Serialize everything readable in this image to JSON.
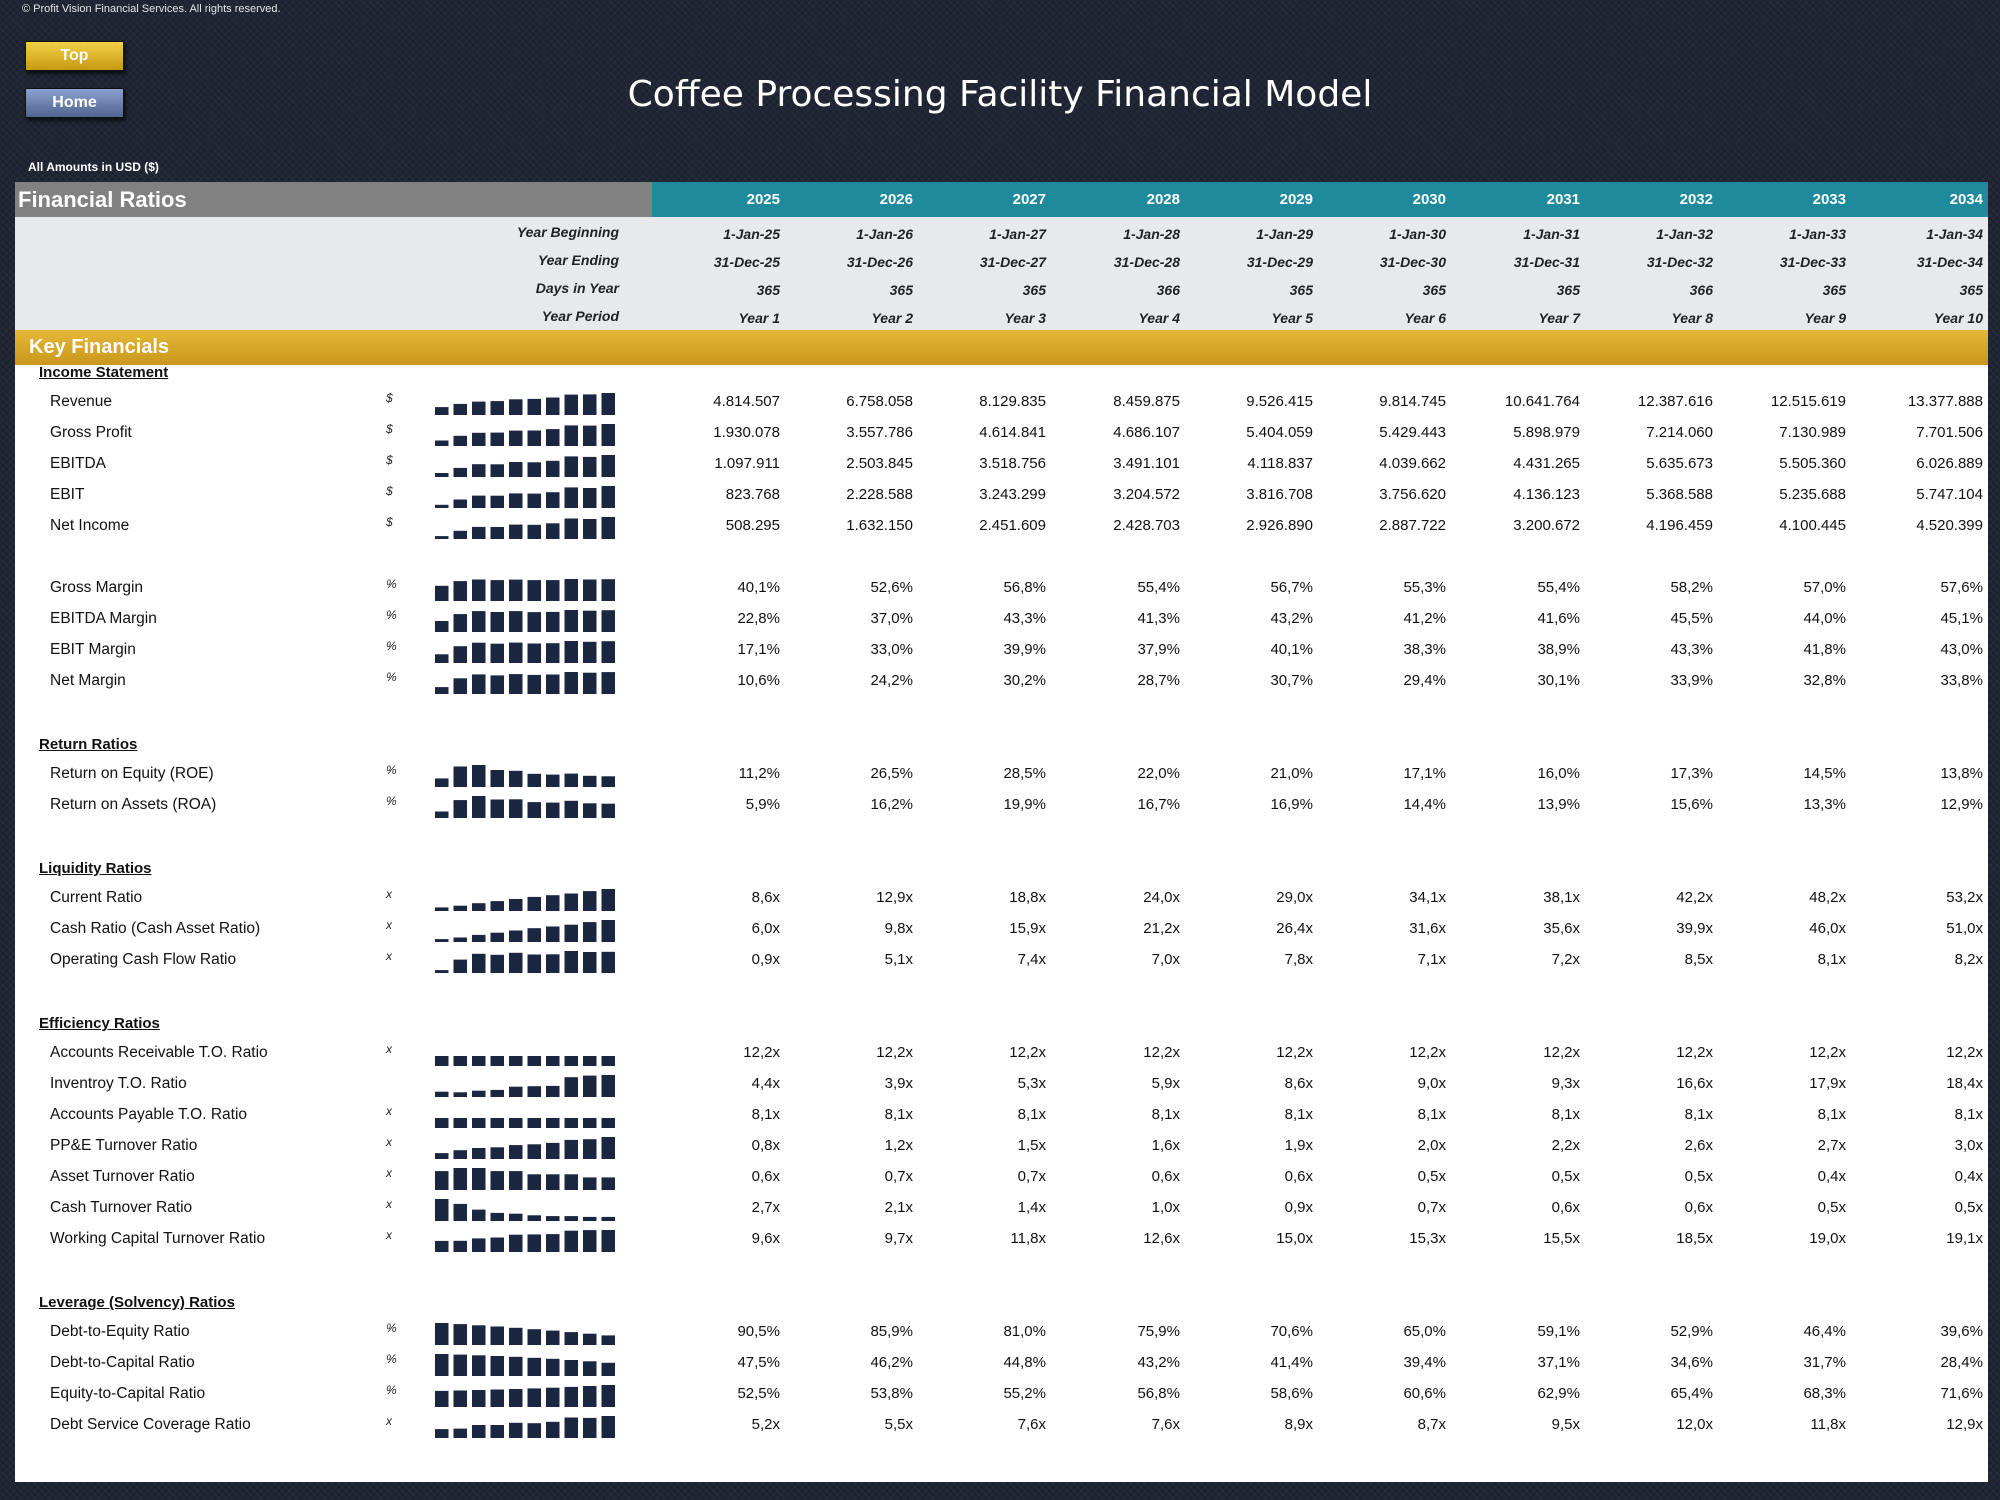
{
  "copyright": "© Profit Vision Financial Services. All rights reserved.",
  "nav": {
    "top": "Top",
    "home": "Home"
  },
  "title": "Coffee Processing Facility Financial Model",
  "amounts_note": "All Amounts in  USD ($)",
  "header": {
    "section": "Financial Ratios",
    "years": [
      "2025",
      "2026",
      "2027",
      "2028",
      "2029",
      "2030",
      "2031",
      "2032",
      "2033",
      "2034"
    ]
  },
  "info": {
    "labels": [
      "Year Beginning",
      "Year Ending",
      "Days in Year",
      "Year Period"
    ],
    "year_beginning": [
      "1-Jan-25",
      "1-Jan-26",
      "1-Jan-27",
      "1-Jan-28",
      "1-Jan-29",
      "1-Jan-30",
      "1-Jan-31",
      "1-Jan-32",
      "1-Jan-33",
      "1-Jan-34"
    ],
    "year_ending": [
      "31-Dec-25",
      "31-Dec-26",
      "31-Dec-27",
      "31-Dec-28",
      "31-Dec-29",
      "31-Dec-30",
      "31-Dec-31",
      "31-Dec-32",
      "31-Dec-33",
      "31-Dec-34"
    ],
    "days": [
      "365",
      "365",
      "365",
      "366",
      "365",
      "365",
      "365",
      "366",
      "365",
      "365"
    ],
    "period": [
      "Year 1",
      "Year 2",
      "Year 3",
      "Year 4",
      "Year 5",
      "Year 6",
      "Year 7",
      "Year 8",
      "Year 9",
      "Year 10"
    ]
  },
  "key_financials": "Key Financials",
  "colors": {
    "teal": "#1f8a9b",
    "gold": "#d9a92a",
    "gray": "#818181",
    "spark": "#1b2740"
  },
  "sections": [
    {
      "title": "Income Statement",
      "rows": [
        {
          "label": "Revenue",
          "unit": "$",
          "values": [
            "4.814.507",
            "6.758.058",
            "8.129.835",
            "8.459.875",
            "9.526.415",
            "9.814.745",
            "10.641.764",
            "12.387.616",
            "12.515.619",
            "13.377.888"
          ]
        },
        {
          "label": "Gross Profit",
          "unit": "$",
          "values": [
            "1.930.078",
            "3.557.786",
            "4.614.841",
            "4.686.107",
            "5.404.059",
            "5.429.443",
            "5.898.979",
            "7.214.060",
            "7.130.989",
            "7.701.506"
          ]
        },
        {
          "label": "EBITDA",
          "unit": "$",
          "values": [
            "1.097.911",
            "2.503.845",
            "3.518.756",
            "3.491.101",
            "4.118.837",
            "4.039.662",
            "4.431.265",
            "5.635.673",
            "5.505.360",
            "6.026.889"
          ]
        },
        {
          "label": "EBIT",
          "unit": "$",
          "values": [
            "823.768",
            "2.228.588",
            "3.243.299",
            "3.204.572",
            "3.816.708",
            "3.756.620",
            "4.136.123",
            "5.368.588",
            "5.235.688",
            "5.747.104"
          ]
        },
        {
          "label": "Net Income",
          "unit": "$",
          "values": [
            "508.295",
            "1.632.150",
            "2.451.609",
            "2.428.703",
            "2.926.890",
            "2.887.722",
            "3.200.672",
            "4.196.459",
            "4.100.445",
            "4.520.399"
          ]
        },
        {
          "label": "Gross Margin",
          "unit": "%",
          "gap": true,
          "values": [
            "40,1%",
            "52,6%",
            "56,8%",
            "55,4%",
            "56,7%",
            "55,3%",
            "55,4%",
            "58,2%",
            "57,0%",
            "57,6%"
          ]
        },
        {
          "label": "EBITDA Margin",
          "unit": "%",
          "values": [
            "22,8%",
            "37,0%",
            "43,3%",
            "41,3%",
            "43,2%",
            "41,2%",
            "41,6%",
            "45,5%",
            "44,0%",
            "45,1%"
          ]
        },
        {
          "label": "EBIT Margin",
          "unit": "%",
          "values": [
            "17,1%",
            "33,0%",
            "39,9%",
            "37,9%",
            "40,1%",
            "38,3%",
            "38,9%",
            "43,3%",
            "41,8%",
            "43,0%"
          ]
        },
        {
          "label": "Net Margin",
          "unit": "%",
          "values": [
            "10,6%",
            "24,2%",
            "30,2%",
            "28,7%",
            "30,7%",
            "29,4%",
            "30,1%",
            "33,9%",
            "32,8%",
            "33,8%"
          ]
        }
      ]
    },
    {
      "title": "Return Ratios",
      "rows": [
        {
          "label": "Return on Equity (ROE)",
          "unit": "%",
          "values": [
            "11,2%",
            "26,5%",
            "28,5%",
            "22,0%",
            "21,0%",
            "17,1%",
            "16,0%",
            "17,3%",
            "14,5%",
            "13,8%"
          ]
        },
        {
          "label": "Return on Assets (ROA)",
          "unit": "%",
          "values": [
            "5,9%",
            "16,2%",
            "19,9%",
            "16,7%",
            "16,9%",
            "14,4%",
            "13,9%",
            "15,6%",
            "13,3%",
            "12,9%"
          ]
        }
      ]
    },
    {
      "title": "Liquidity Ratios",
      "rows": [
        {
          "label": "Current Ratio",
          "unit": "x",
          "values": [
            "8,6x",
            "12,9x",
            "18,8x",
            "24,0x",
            "29,0x",
            "34,1x",
            "38,1x",
            "42,2x",
            "48,2x",
            "53,2x"
          ]
        },
        {
          "label": "Cash Ratio (Cash Asset Ratio)",
          "unit": "x",
          "values": [
            "6,0x",
            "9,8x",
            "15,9x",
            "21,2x",
            "26,4x",
            "31,6x",
            "35,6x",
            "39,9x",
            "46,0x",
            "51,0x"
          ]
        },
        {
          "label": "Operating Cash Flow Ratio",
          "unit": "x",
          "values": [
            "0,9x",
            "5,1x",
            "7,4x",
            "7,0x",
            "7,8x",
            "7,1x",
            "7,2x",
            "8,5x",
            "8,1x",
            "8,2x"
          ]
        }
      ]
    },
    {
      "title": "Efficiency Ratios",
      "rows": [
        {
          "label": "Accounts Receivable T.O. Ratio",
          "unit": "x",
          "values": [
            "12,2x",
            "12,2x",
            "12,2x",
            "12,2x",
            "12,2x",
            "12,2x",
            "12,2x",
            "12,2x",
            "12,2x",
            "12,2x"
          ]
        },
        {
          "label": "Inventroy T.O. Ratio",
          "unit": "",
          "values": [
            "4,4x",
            "3,9x",
            "5,3x",
            "5,9x",
            "8,6x",
            "9,0x",
            "9,3x",
            "16,6x",
            "17,9x",
            "18,4x"
          ]
        },
        {
          "label": "Accounts Payable T.O. Ratio",
          "unit": "x",
          "values": [
            "8,1x",
            "8,1x",
            "8,1x",
            "8,1x",
            "8,1x",
            "8,1x",
            "8,1x",
            "8,1x",
            "8,1x",
            "8,1x"
          ]
        },
        {
          "label": "PP&E Turnover Ratio",
          "unit": "x",
          "values": [
            "0,8x",
            "1,2x",
            "1,5x",
            "1,6x",
            "1,9x",
            "2,0x",
            "2,2x",
            "2,6x",
            "2,7x",
            "3,0x"
          ]
        },
        {
          "label": "Asset Turnover Ratio",
          "unit": "x",
          "values": [
            "0,6x",
            "0,7x",
            "0,7x",
            "0,6x",
            "0,6x",
            "0,5x",
            "0,5x",
            "0,5x",
            "0,4x",
            "0,4x"
          ]
        },
        {
          "label": "Cash Turnover Ratio",
          "unit": "x",
          "values": [
            "2,7x",
            "2,1x",
            "1,4x",
            "1,0x",
            "0,9x",
            "0,7x",
            "0,6x",
            "0,6x",
            "0,5x",
            "0,5x"
          ]
        },
        {
          "label": "Working Capital Turnover Ratio",
          "unit": "x",
          "values": [
            "9,6x",
            "9,7x",
            "11,8x",
            "12,6x",
            "15,0x",
            "15,3x",
            "15,5x",
            "18,5x",
            "19,0x",
            "19,1x"
          ]
        }
      ]
    },
    {
      "title": "Leverage (Solvency) Ratios",
      "rows": [
        {
          "label": "Debt-to-Equity Ratio",
          "unit": "%",
          "values": [
            "90,5%",
            "85,9%",
            "81,0%",
            "75,9%",
            "70,6%",
            "65,0%",
            "59,1%",
            "52,9%",
            "46,4%",
            "39,6%"
          ]
        },
        {
          "label": "Debt-to-Capital Ratio",
          "unit": "%",
          "values": [
            "47,5%",
            "46,2%",
            "44,8%",
            "43,2%",
            "41,4%",
            "39,4%",
            "37,1%",
            "34,6%",
            "31,7%",
            "28,4%"
          ]
        },
        {
          "label": "Equity-to-Capital Ratio",
          "unit": "%",
          "values": [
            "52,5%",
            "53,8%",
            "55,2%",
            "56,8%",
            "58,6%",
            "60,6%",
            "62,9%",
            "65,4%",
            "68,3%",
            "71,6%"
          ]
        },
        {
          "label": "Debt Service Coverage Ratio",
          "unit": "x",
          "values": [
            "5,2x",
            "5,5x",
            "7,6x",
            "7,6x",
            "8,9x",
            "8,7x",
            "9,5x",
            "12,0x",
            "11,8x",
            "12,9x"
          ]
        }
      ]
    }
  ]
}
